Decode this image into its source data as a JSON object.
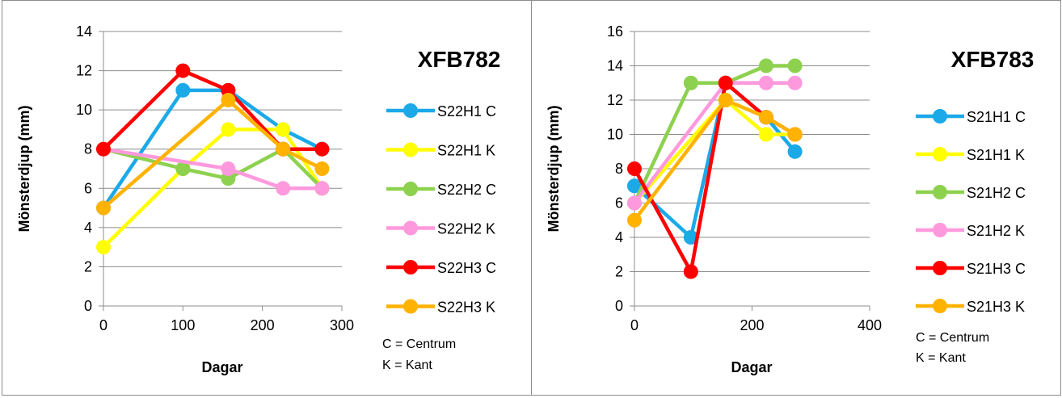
{
  "chart_data": [
    {
      "type": "line",
      "title": "XFB782",
      "xlabel": "Dagar",
      "ylabel": "Mönsterdjup (mm)",
      "xlim": [
        0,
        300
      ],
      "ylim": [
        0,
        14
      ],
      "xticks": [
        0,
        100,
        200,
        300
      ],
      "yticks": [
        0,
        2,
        4,
        6,
        8,
        10,
        12,
        14
      ],
      "grid": "horizontal",
      "legend_position": "right",
      "notes": [
        "C = Centrum",
        "K = Kant"
      ],
      "series": [
        {
          "name": "S22H1 C",
          "color": "#1BA9E8",
          "x": [
            0,
            100,
            157,
            226,
            275
          ],
          "y": [
            5,
            11,
            11,
            9,
            8
          ]
        },
        {
          "name": "S22H1 K",
          "color": "#FFFF00",
          "x": [
            0,
            100,
            157,
            226,
            275
          ],
          "y": [
            3,
            7,
            9,
            9,
            6
          ]
        },
        {
          "name": "S22H2 C",
          "color": "#8DD14F",
          "x": [
            0,
            100,
            157,
            226,
            275
          ],
          "y": [
            8,
            7,
            6.5,
            8,
            6
          ]
        },
        {
          "name": "S22H2 K",
          "color": "#FF99DD",
          "x": [
            0,
            157,
            226,
            275
          ],
          "y": [
            8,
            7,
            6,
            6
          ]
        },
        {
          "name": "S22H3 C",
          "color": "#FF0000",
          "x": [
            0,
            100,
            157,
            226,
            275
          ],
          "y": [
            8,
            12,
            11,
            8,
            8
          ]
        },
        {
          "name": "S22H3 K",
          "color": "#FFB300",
          "x": [
            0,
            157,
            226,
            275
          ],
          "y": [
            5,
            10.5,
            8,
            7
          ]
        }
      ]
    },
    {
      "type": "line",
      "title": "XFB783",
      "xlabel": "Dagar",
      "ylabel": "Mönsterdjup (mm)",
      "xlim": [
        0,
        400
      ],
      "ylim": [
        0,
        16
      ],
      "xticks": [
        0,
        200,
        400
      ],
      "yticks": [
        0,
        2,
        4,
        6,
        8,
        10,
        12,
        14,
        16
      ],
      "grid": "horizontal",
      "legend_position": "right",
      "notes": [
        "C = Centrum",
        "K = Kant"
      ],
      "series": [
        {
          "name": "S21H1 C",
          "color": "#1BA9E8",
          "x": [
            0,
            96,
            155,
            224,
            273
          ],
          "y": [
            7,
            4,
            13,
            11,
            9
          ]
        },
        {
          "name": "S21H1 K",
          "color": "#FFFF00",
          "x": [
            0,
            155,
            224,
            273
          ],
          "y": [
            6,
            12,
            10,
            10
          ]
        },
        {
          "name": "S21H2 C",
          "color": "#8DD14F",
          "x": [
            0,
            96,
            155,
            224,
            273
          ],
          "y": [
            6,
            13,
            13,
            14,
            14
          ]
        },
        {
          "name": "S21H2 K",
          "color": "#FF99DD",
          "x": [
            0,
            155,
            224,
            273
          ],
          "y": [
            6,
            13,
            13,
            13
          ]
        },
        {
          "name": "S21H3 C",
          "color": "#FF0000",
          "x": [
            0,
            96,
            155,
            224,
            273
          ],
          "y": [
            8,
            2,
            13,
            11,
            10
          ]
        },
        {
          "name": "S21H3 K",
          "color": "#FFB300",
          "x": [
            0,
            155,
            224,
            273
          ],
          "y": [
            5,
            12,
            11,
            10
          ]
        }
      ]
    }
  ]
}
